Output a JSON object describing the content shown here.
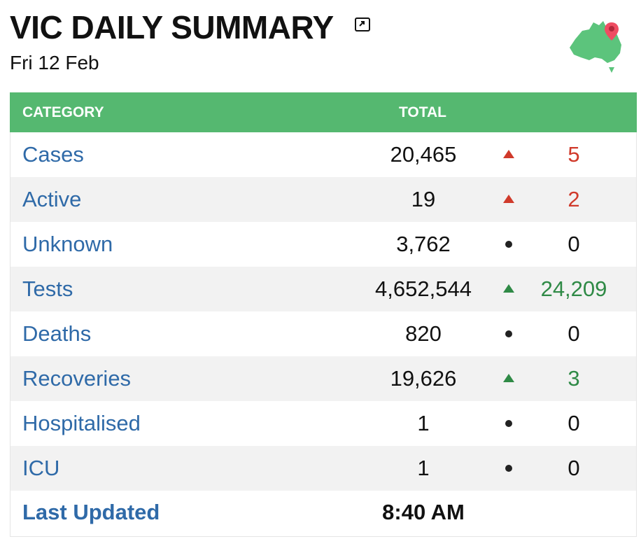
{
  "header": {
    "title": "VIC DAILY SUMMARY",
    "date": "Fri 12 Feb",
    "expand_icon": "expand-icon",
    "map_icon": "australia-map-pin-icon"
  },
  "table": {
    "columns": [
      "CATEGORY",
      "TOTAL"
    ],
    "rows": [
      {
        "category": "Cases",
        "total": "20,465",
        "indicator": "up",
        "change": "5",
        "change_color": "#d03a2b"
      },
      {
        "category": "Active",
        "total": "19",
        "indicator": "up",
        "change": "2",
        "change_color": "#d03a2b"
      },
      {
        "category": "Unknown",
        "total": "3,762",
        "indicator": "dot",
        "change": "0",
        "change_color": "#111111"
      },
      {
        "category": "Tests",
        "total": "4,652,544",
        "indicator": "up",
        "change": "24,209",
        "change_color": "#2f8a46"
      },
      {
        "category": "Deaths",
        "total": "820",
        "indicator": "dot",
        "change": "0",
        "change_color": "#111111"
      },
      {
        "category": "Recoveries",
        "total": "19,626",
        "indicator": "up",
        "change": "3",
        "change_color": "#2f8a46"
      },
      {
        "category": "Hospitalised",
        "total": "1",
        "indicator": "dot",
        "change": "0",
        "change_color": "#111111"
      },
      {
        "category": "ICU",
        "total": "1",
        "indicator": "dot",
        "change": "0",
        "change_color": "#111111"
      }
    ],
    "last_updated_label": "Last Updated",
    "last_updated_value": "8:40 AM"
  },
  "colors": {
    "header_green": "#55b870",
    "link_blue": "#2f6aa8",
    "increase_red": "#d03a2b",
    "increase_green": "#2f8a46",
    "row_alt": "#f2f2f2"
  }
}
